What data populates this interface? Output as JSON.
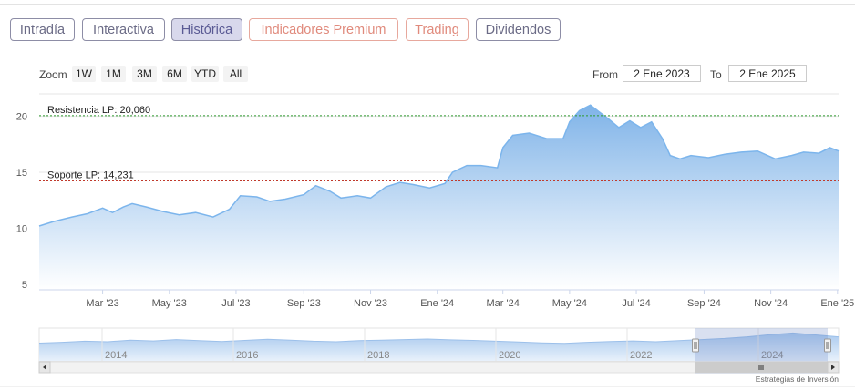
{
  "tabs": [
    {
      "label": "Intradía",
      "style": "normal"
    },
    {
      "label": "Interactiva",
      "style": "normal"
    },
    {
      "label": "Histórica",
      "style": "active"
    },
    {
      "label": "Indicadores Premium",
      "style": "orange"
    },
    {
      "label": "Trading",
      "style": "orange"
    },
    {
      "label": "Dividendos",
      "style": "normal"
    }
  ],
  "toolbar": {
    "zoom_label": "Zoom",
    "zoom_options": [
      "1W",
      "1M",
      "3M",
      "6M",
      "YTD",
      "All"
    ],
    "from_label": "From",
    "from_value": "2 Ene 2023",
    "to_label": "To",
    "to_value": "2 Ene 2025"
  },
  "colors": {
    "line": "#7cb5ec",
    "area_top": "#7fb3e8",
    "area_bottom": "#ffffff",
    "resistance": "#2e9a2e",
    "support": "#c0392b",
    "tab_active_bg": "#d8d8ec",
    "tab_orange": "#e08a7c"
  },
  "chart_data": {
    "type": "area",
    "xlim": [
      "2023-01-02",
      "2025-01-02"
    ],
    "ylim": [
      4.5,
      22
    ],
    "y_ticks": [
      5,
      10,
      15,
      20
    ],
    "x_tick_labels": [
      {
        "label": "Mar '23",
        "date": "2023-03-01"
      },
      {
        "label": "May '23",
        "date": "2023-05-01"
      },
      {
        "label": "Jul '23",
        "date": "2023-07-01"
      },
      {
        "label": "Sep '23",
        "date": "2023-09-01"
      },
      {
        "label": "Nov '23",
        "date": "2023-11-01"
      },
      {
        "label": "Ene '24",
        "date": "2024-01-01"
      },
      {
        "label": "Mar '24",
        "date": "2024-03-01"
      },
      {
        "label": "May '24",
        "date": "2024-05-01"
      },
      {
        "label": "Jul '24",
        "date": "2024-07-01"
      },
      {
        "label": "Sep '24",
        "date": "2024-09-01"
      },
      {
        "label": "Nov '24",
        "date": "2024-11-01"
      },
      {
        "label": "Ene '25",
        "date": "2025-01-01"
      }
    ],
    "grid": true,
    "legend": "none",
    "series": [
      {
        "x": [
          "2023-01-02",
          "2023-01-15",
          "2023-02-01",
          "2023-02-15",
          "2023-03-01",
          "2023-03-10",
          "2023-03-20",
          "2023-03-28",
          "2023-04-10",
          "2023-04-25",
          "2023-05-10",
          "2023-05-25",
          "2023-06-10",
          "2023-06-25",
          "2023-07-05",
          "2023-07-20",
          "2023-08-01",
          "2023-08-15",
          "2023-09-01",
          "2023-09-12",
          "2023-09-25",
          "2023-10-05",
          "2023-10-20",
          "2023-11-01",
          "2023-11-15",
          "2023-11-28",
          "2023-12-10",
          "2023-12-25",
          "2024-01-08",
          "2024-01-15",
          "2024-01-28",
          "2024-02-10",
          "2024-02-25",
          "2024-03-01",
          "2024-03-10",
          "2024-03-25",
          "2024-04-10",
          "2024-04-25",
          "2024-05-01",
          "2024-05-10",
          "2024-05-20",
          "2024-05-28",
          "2024-06-05",
          "2024-06-15",
          "2024-06-25",
          "2024-07-05",
          "2024-07-15",
          "2024-07-25",
          "2024-08-01",
          "2024-08-10",
          "2024-08-20",
          "2024-09-05",
          "2024-09-20",
          "2024-10-05",
          "2024-10-20",
          "2024-11-05",
          "2024-11-20",
          "2024-12-01",
          "2024-12-15",
          "2024-12-25",
          "2025-01-02"
        ],
        "y": [
          10.2,
          10.6,
          11.0,
          11.3,
          11.8,
          11.4,
          11.9,
          12.2,
          11.9,
          11.5,
          11.2,
          11.4,
          11.0,
          11.7,
          12.9,
          12.8,
          12.4,
          12.6,
          13.0,
          13.8,
          13.3,
          12.7,
          12.9,
          12.7,
          13.7,
          14.1,
          13.9,
          13.6,
          14.0,
          15.0,
          15.6,
          15.6,
          15.4,
          17.2,
          18.3,
          18.5,
          18.0,
          18.0,
          19.5,
          20.5,
          21.0,
          20.4,
          19.8,
          19.0,
          19.6,
          19.0,
          19.5,
          18.0,
          16.5,
          16.2,
          16.5,
          16.3,
          16.6,
          16.8,
          16.9,
          16.2,
          16.5,
          16.8,
          16.7,
          17.2,
          16.9
        ]
      }
    ],
    "reference_lines": [
      {
        "label": "Resistencia LP: 20,060",
        "value": 20.06
      },
      {
        "label": "Soporte LP: 14,231",
        "value": 14.231
      }
    ],
    "navigator": {
      "year_labels": [
        "2014",
        "2016",
        "2018",
        "2020",
        "2022",
        "2024"
      ],
      "values": [
        6.5,
        6.8,
        7.2,
        7.0,
        7.6,
        7.3,
        7.8,
        7.4,
        7.1,
        7.5,
        7.9,
        7.6,
        7.2,
        7.0,
        7.4,
        7.6,
        7.8,
        8.0,
        7.7,
        7.5,
        7.2,
        6.9,
        6.6,
        6.4,
        6.8,
        7.1,
        7.3,
        7.0,
        7.4,
        7.8,
        8.2,
        8.8,
        9.6,
        10.2,
        9.5,
        8.8
      ]
    }
  },
  "credit": "Estrategias de Inversión"
}
